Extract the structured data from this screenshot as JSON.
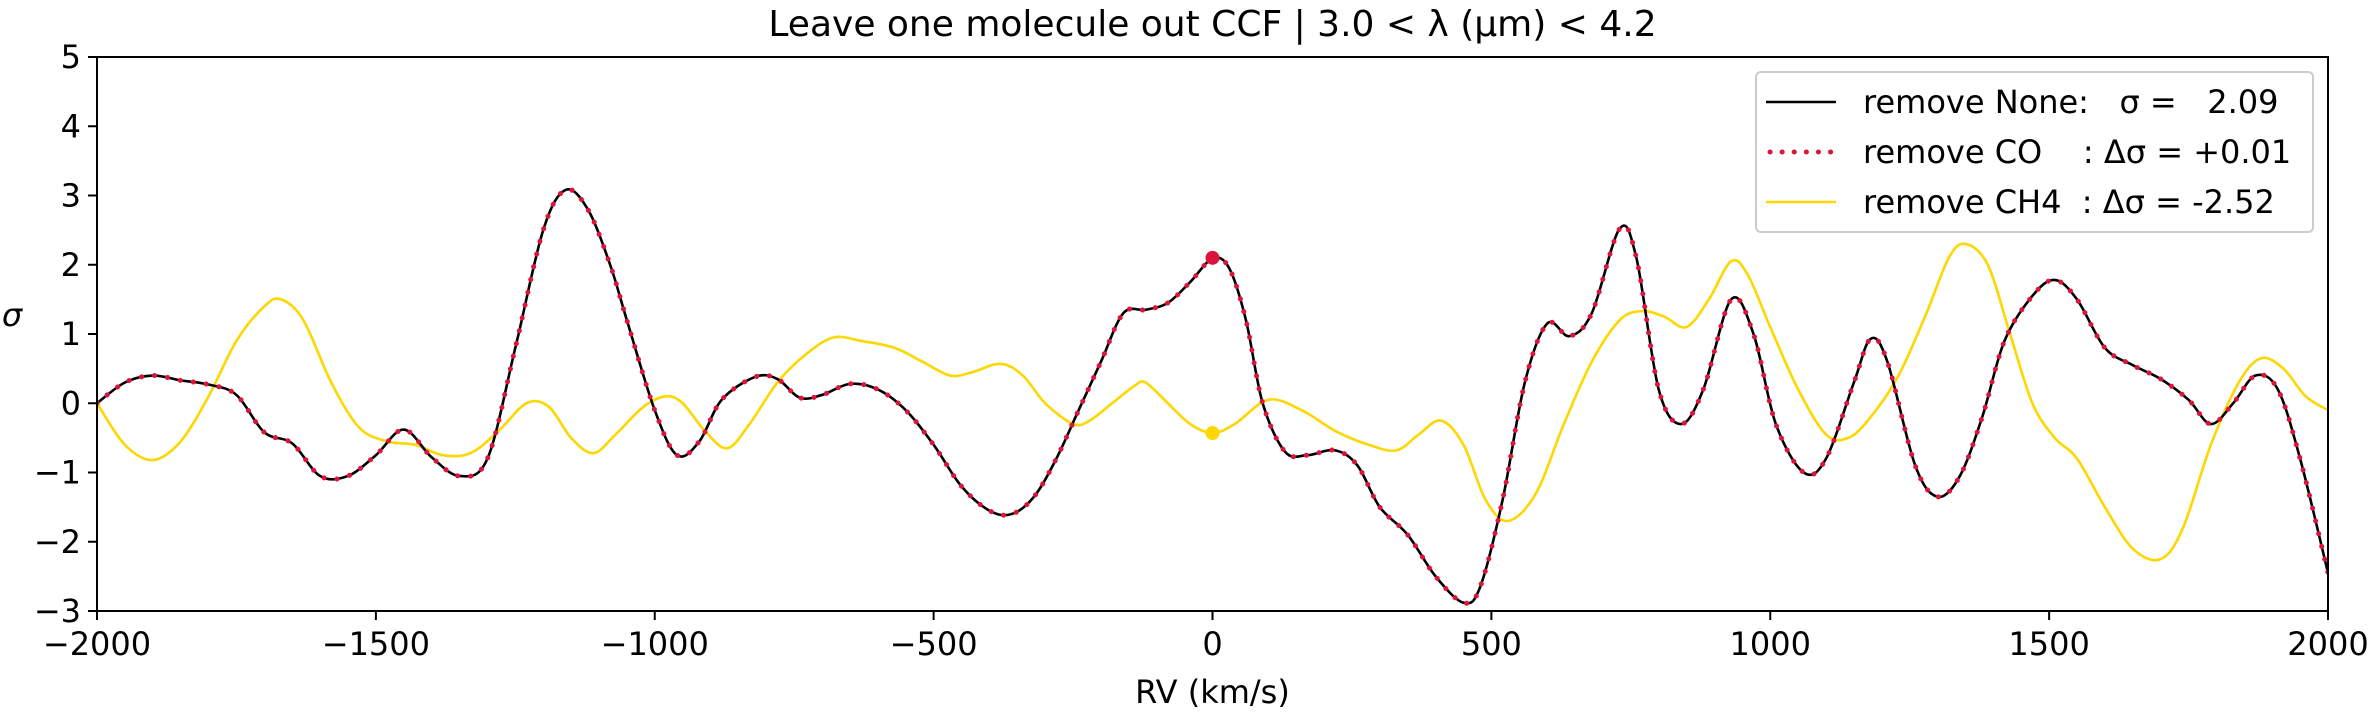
{
  "chart_data": {
    "type": "line",
    "title": "Leave one molecule out CCF | 3.0 < λ (μm) < 4.2",
    "xlabel": "RV (km/s)",
    "ylabel": "σ",
    "xlim": [
      -2000,
      2000
    ],
    "ylim": [
      -3,
      5
    ],
    "xticks": [
      -2000,
      -1500,
      -1000,
      -500,
      0,
      500,
      1000,
      1500,
      2000
    ],
    "xtick_labels": [
      "−2000",
      "−1500",
      "−1000",
      "−500",
      "0",
      "500",
      "1000",
      "1500",
      "2000"
    ],
    "yticks": [
      -3,
      -2,
      -1,
      0,
      1,
      2,
      3,
      4,
      5
    ],
    "ytick_labels": [
      "−3",
      "−2",
      "−1",
      "0",
      "1",
      "2",
      "3",
      "4",
      "5"
    ],
    "legend": {
      "position": "top-right"
    },
    "series": [
      {
        "name": "remove None",
        "legend_label": "remove None:   σ =   2.09",
        "color": "#000000",
        "style": "solid",
        "marker_value": 2.09,
        "points": [
          [
            -2000,
            0.0
          ],
          [
            -1950,
            0.3
          ],
          [
            -1900,
            0.4
          ],
          [
            -1850,
            0.33
          ],
          [
            -1800,
            0.27
          ],
          [
            -1750,
            0.12
          ],
          [
            -1700,
            -0.42
          ],
          [
            -1650,
            -0.58
          ],
          [
            -1600,
            -1.05
          ],
          [
            -1550,
            -1.05
          ],
          [
            -1500,
            -0.75
          ],
          [
            -1450,
            -0.38
          ],
          [
            -1400,
            -0.78
          ],
          [
            -1350,
            -1.05
          ],
          [
            -1300,
            -0.8
          ],
          [
            -1250,
            0.8
          ],
          [
            -1200,
            2.5
          ],
          [
            -1160,
            3.08
          ],
          [
            -1120,
            2.8
          ],
          [
            -1080,
            2.0
          ],
          [
            -1050,
            1.2
          ],
          [
            -1000,
            -0.1
          ],
          [
            -960,
            -0.75
          ],
          [
            -920,
            -0.55
          ],
          [
            -880,
            0.05
          ],
          [
            -820,
            0.38
          ],
          [
            -780,
            0.35
          ],
          [
            -740,
            0.08
          ],
          [
            -700,
            0.12
          ],
          [
            -650,
            0.28
          ],
          [
            -600,
            0.2
          ],
          [
            -550,
            -0.1
          ],
          [
            -500,
            -0.6
          ],
          [
            -450,
            -1.2
          ],
          [
            -400,
            -1.55
          ],
          [
            -360,
            -1.6
          ],
          [
            -320,
            -1.35
          ],
          [
            -280,
            -0.8
          ],
          [
            -240,
            -0.1
          ],
          [
            -200,
            0.6
          ],
          [
            -160,
            1.3
          ],
          [
            -120,
            1.35
          ],
          [
            -80,
            1.45
          ],
          [
            -40,
            1.75
          ],
          [
            0,
            2.09
          ],
          [
            30,
            1.95
          ],
          [
            60,
            1.2
          ],
          [
            90,
            0.0
          ],
          [
            130,
            -0.7
          ],
          [
            170,
            -0.75
          ],
          [
            220,
            -0.68
          ],
          [
            260,
            -0.9
          ],
          [
            300,
            -1.5
          ],
          [
            350,
            -1.9
          ],
          [
            400,
            -2.5
          ],
          [
            450,
            -2.88
          ],
          [
            480,
            -2.65
          ],
          [
            520,
            -1.4
          ],
          [
            560,
            0.3
          ],
          [
            600,
            1.15
          ],
          [
            640,
            0.97
          ],
          [
            680,
            1.3
          ],
          [
            730,
            2.52
          ],
          [
            760,
            2.1
          ],
          [
            800,
            0.2
          ],
          [
            840,
            -0.3
          ],
          [
            880,
            0.2
          ],
          [
            930,
            1.5
          ],
          [
            970,
            1.0
          ],
          [
            1010,
            -0.3
          ],
          [
            1060,
            -1.0
          ],
          [
            1100,
            -0.8
          ],
          [
            1150,
            0.3
          ],
          [
            1180,
            0.93
          ],
          [
            1210,
            0.6
          ],
          [
            1260,
            -0.9
          ],
          [
            1300,
            -1.35
          ],
          [
            1340,
            -1.05
          ],
          [
            1380,
            -0.2
          ],
          [
            1420,
            0.9
          ],
          [
            1470,
            1.55
          ],
          [
            1510,
            1.78
          ],
          [
            1550,
            1.5
          ],
          [
            1600,
            0.8
          ],
          [
            1650,
            0.55
          ],
          [
            1700,
            0.35
          ],
          [
            1750,
            0.05
          ],
          [
            1790,
            -0.3
          ],
          [
            1830,
            0.0
          ],
          [
            1870,
            0.4
          ],
          [
            1910,
            0.2
          ],
          [
            1950,
            -0.8
          ],
          [
            2000,
            -2.45
          ]
        ]
      },
      {
        "name": "remove CO",
        "legend_label": "remove CO    : Δσ = +0.01",
        "color": "#dc143c",
        "style": "dotted",
        "marker_value": 2.1,
        "same_as": "remove None"
      },
      {
        "name": "remove CH4",
        "legend_label": "remove CH4  : Δσ = -2.52",
        "color": "#ffd700",
        "style": "solid",
        "marker_value": -0.43,
        "points": [
          [
            -2000,
            0.0
          ],
          [
            -1950,
            -0.6
          ],
          [
            -1900,
            -0.82
          ],
          [
            -1850,
            -0.55
          ],
          [
            -1800,
            0.1
          ],
          [
            -1750,
            0.9
          ],
          [
            -1700,
            1.4
          ],
          [
            -1670,
            1.5
          ],
          [
            -1630,
            1.2
          ],
          [
            -1580,
            0.3
          ],
          [
            -1530,
            -0.35
          ],
          [
            -1480,
            -0.55
          ],
          [
            -1430,
            -0.6
          ],
          [
            -1380,
            -0.75
          ],
          [
            -1330,
            -0.72
          ],
          [
            -1280,
            -0.4
          ],
          [
            -1230,
            0.0
          ],
          [
            -1190,
            -0.05
          ],
          [
            -1150,
            -0.5
          ],
          [
            -1110,
            -0.72
          ],
          [
            -1070,
            -0.45
          ],
          [
            -1020,
            -0.05
          ],
          [
            -980,
            0.1
          ],
          [
            -950,
            0.0
          ],
          [
            -910,
            -0.4
          ],
          [
            -870,
            -0.65
          ],
          [
            -830,
            -0.3
          ],
          [
            -780,
            0.3
          ],
          [
            -730,
            0.7
          ],
          [
            -680,
            0.95
          ],
          [
            -630,
            0.9
          ],
          [
            -570,
            0.8
          ],
          [
            -520,
            0.6
          ],
          [
            -470,
            0.4
          ],
          [
            -430,
            0.45
          ],
          [
            -380,
            0.57
          ],
          [
            -340,
            0.4
          ],
          [
            -300,
            0.0
          ],
          [
            -250,
            -0.3
          ],
          [
            -220,
            -0.25
          ],
          [
            -180,
            0.0
          ],
          [
            -140,
            0.25
          ],
          [
            -120,
            0.3
          ],
          [
            -80,
            0.0
          ],
          [
            -40,
            -0.3
          ],
          [
            0,
            -0.43
          ],
          [
            40,
            -0.3
          ],
          [
            100,
            0.05
          ],
          [
            160,
            -0.1
          ],
          [
            220,
            -0.4
          ],
          [
            280,
            -0.6
          ],
          [
            330,
            -0.68
          ],
          [
            370,
            -0.45
          ],
          [
            410,
            -0.25
          ],
          [
            450,
            -0.6
          ],
          [
            490,
            -1.4
          ],
          [
            530,
            -1.7
          ],
          [
            580,
            -1.3
          ],
          [
            630,
            -0.3
          ],
          [
            680,
            0.6
          ],
          [
            730,
            1.2
          ],
          [
            770,
            1.33
          ],
          [
            810,
            1.25
          ],
          [
            850,
            1.1
          ],
          [
            890,
            1.5
          ],
          [
            930,
            2.05
          ],
          [
            960,
            1.85
          ],
          [
            1000,
            1.1
          ],
          [
            1050,
            0.2
          ],
          [
            1100,
            -0.45
          ],
          [
            1140,
            -0.5
          ],
          [
            1180,
            -0.2
          ],
          [
            1230,
            0.4
          ],
          [
            1280,
            1.3
          ],
          [
            1320,
            2.1
          ],
          [
            1350,
            2.3
          ],
          [
            1390,
            2.0
          ],
          [
            1430,
            1.0
          ],
          [
            1470,
            0.0
          ],
          [
            1510,
            -0.5
          ],
          [
            1550,
            -0.8
          ],
          [
            1600,
            -1.5
          ],
          [
            1650,
            -2.1
          ],
          [
            1700,
            -2.25
          ],
          [
            1740,
            -1.8
          ],
          [
            1790,
            -0.6
          ],
          [
            1840,
            0.3
          ],
          [
            1880,
            0.65
          ],
          [
            1920,
            0.5
          ],
          [
            1960,
            0.1
          ],
          [
            2000,
            -0.1
          ]
        ]
      }
    ]
  }
}
